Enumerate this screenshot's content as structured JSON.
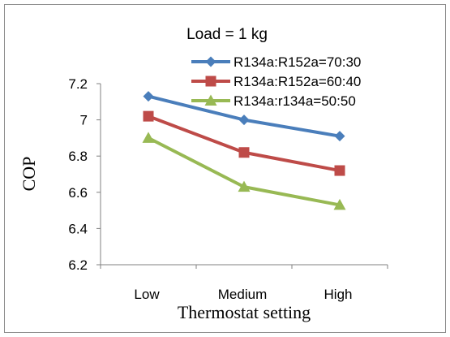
{
  "chart_data": {
    "type": "line",
    "title": "Load = 1 kg",
    "xlabel": "Thermostat setting",
    "ylabel": "COP",
    "categories": [
      "Low",
      "Medium",
      "High"
    ],
    "ylim": [
      6.2,
      7.2
    ],
    "yticks": [
      "6.2",
      "6.4",
      "6.6",
      "6.8",
      "7",
      "7.2"
    ],
    "grid": false,
    "legend_position": "top-right",
    "series": [
      {
        "name": "R134a:R152a=70:30",
        "values": [
          7.13,
          7.0,
          6.91
        ],
        "color": "#4a7ebb",
        "marker": "diamond"
      },
      {
        "name": "R134a:R152a=60:40",
        "values": [
          7.02,
          6.82,
          6.72
        ],
        "color": "#be4b48",
        "marker": "square"
      },
      {
        "name": "R134a:r134a=50:50",
        "values": [
          6.9,
          6.63,
          6.53
        ],
        "color": "#98b954",
        "marker": "triangle"
      }
    ]
  }
}
